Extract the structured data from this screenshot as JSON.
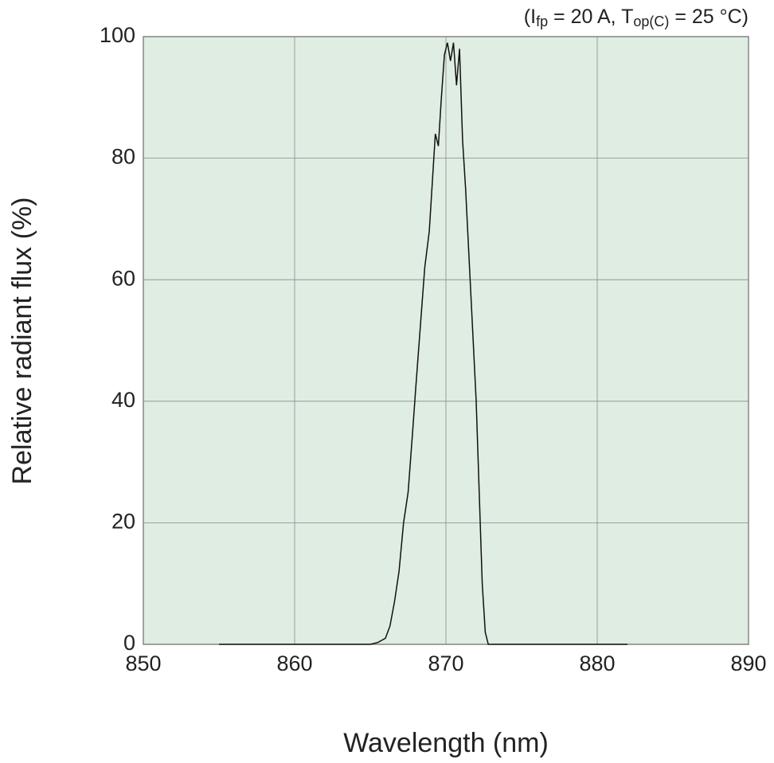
{
  "chart_data": {
    "type": "line",
    "annotation": [
      "(I",
      "fp",
      " = 20 A, T",
      "op(C)",
      " = 25 °C)"
    ],
    "xlabel": "Wavelength (nm)",
    "ylabel": "Relative radiant flux (%)",
    "x": [
      855,
      865,
      865.5,
      866,
      866.3,
      866.6,
      866.9,
      867.2,
      867.5,
      867.8,
      868.0,
      868.3,
      868.6,
      868.9,
      869.1,
      869.3,
      869.5,
      869.7,
      869.9,
      870.1,
      870.3,
      870.5,
      870.7,
      870.9,
      871.1,
      871.3,
      871.5,
      871.8,
      872.0,
      872.2,
      872.4,
      872.6,
      872.8,
      882
    ],
    "series": [
      {
        "color": "#111111",
        "values": [
          0,
          0,
          0.3,
          1,
          3,
          7,
          12,
          20,
          25,
          35,
          42,
          52,
          62,
          68,
          76,
          84,
          82,
          90,
          97,
          99,
          96,
          99,
          92,
          98,
          83,
          75,
          65,
          50,
          40,
          25,
          10,
          2,
          0,
          0
        ]
      }
    ],
    "xlim": [
      850,
      890
    ],
    "xticks": [
      850,
      860,
      870,
      880,
      890
    ],
    "ylim": [
      0,
      100
    ],
    "yticks": [
      0,
      20,
      40,
      60,
      80,
      100
    ],
    "grid": true,
    "background": "#dfede2"
  }
}
